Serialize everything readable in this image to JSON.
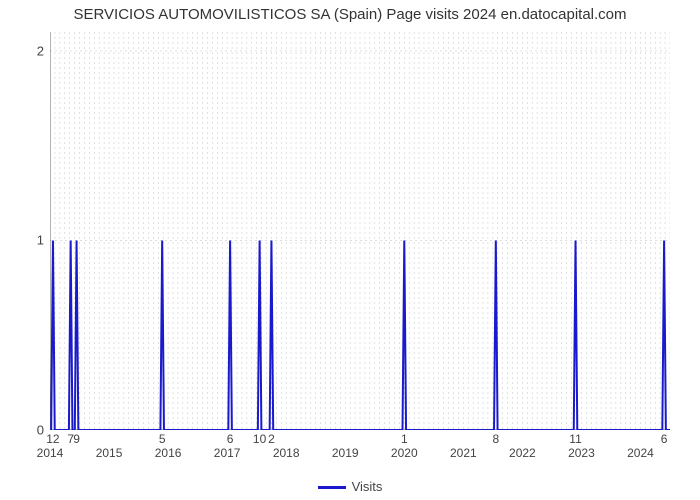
{
  "chart": {
    "type": "line",
    "title": "SERVICIOS AUTOMOVILISTICOS SA (Spain) Page visits 2024 en.datocapital.com",
    "title_fontsize": 15,
    "background_color": "#ffffff",
    "line_color": "#1a1acc",
    "line_width": 2,
    "grid_color": "#cccccc",
    "grid_dash": "2,3",
    "axis_color": "#666666",
    "xlim": [
      2014,
      2024.5
    ],
    "ylim": [
      0,
      2.1
    ],
    "ytick_positions": [
      0,
      1,
      2
    ],
    "ytick_labels": [
      "0",
      "1",
      "2"
    ],
    "x_year_positions": [
      2014,
      2015,
      2016,
      2017,
      2018,
      2019,
      2020,
      2021,
      2022,
      2023,
      2024
    ],
    "x_year_labels": [
      "2014",
      "2015",
      "2016",
      "2017",
      "2018",
      "2019",
      "2020",
      "2021",
      "2022",
      "2023",
      "2024"
    ],
    "xgrid_minor_count_per_year": 12,
    "spikes": [
      {
        "x": 2014.05,
        "label": "12"
      },
      {
        "x": 2014.35,
        "label": "7"
      },
      {
        "x": 2014.45,
        "label": "9"
      },
      {
        "x": 2015.9,
        "label": "5"
      },
      {
        "x": 2017.05,
        "label": "6"
      },
      {
        "x": 2017.55,
        "label": "10"
      },
      {
        "x": 2017.75,
        "label": "2"
      },
      {
        "x": 2020.0,
        "label": "1"
      },
      {
        "x": 2021.55,
        "label": "8"
      },
      {
        "x": 2022.9,
        "label": "11"
      },
      {
        "x": 2024.4,
        "label": "6"
      }
    ],
    "spike_value": 1,
    "baseline_value": 0,
    "legend_label": "Visits"
  }
}
